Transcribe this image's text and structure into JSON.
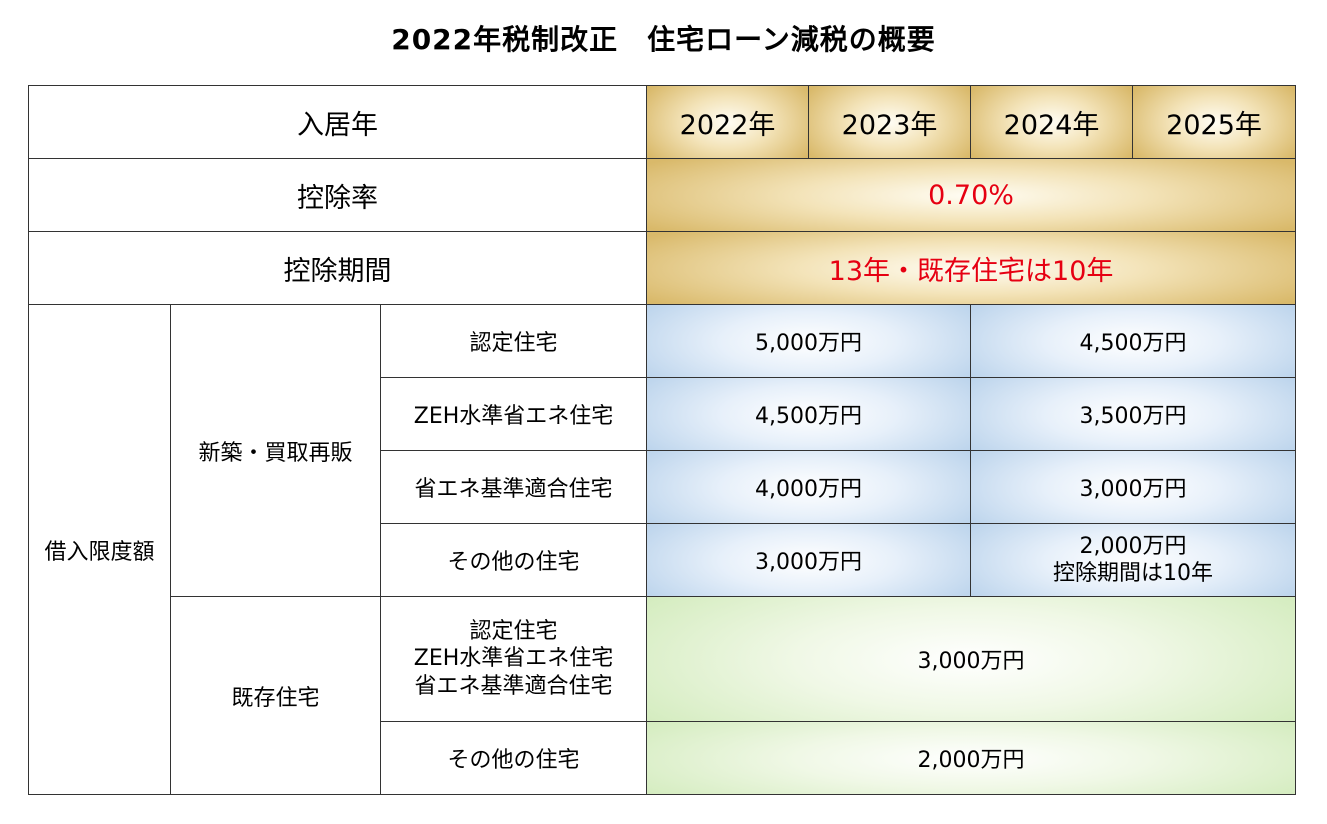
{
  "title": "2022年税制改正　住宅ローン減税の概要",
  "header": {
    "label": "入居年",
    "years": [
      "2022年",
      "2023年",
      "2024年",
      "2025年"
    ]
  },
  "deduction_rate": {
    "label": "控除率",
    "value": "0.70%"
  },
  "deduction_period": {
    "label": "控除期間",
    "value": "13年・既存住宅は10年"
  },
  "borrowing_limit": {
    "label": "借入限度額",
    "new": {
      "label": "新築・買取再販",
      "rows": [
        {
          "type": "認定住宅",
          "early": "5,000万円",
          "late": "4,500万円"
        },
        {
          "type": "ZEH水準省エネ住宅",
          "early": "4,500万円",
          "late": "3,500万円"
        },
        {
          "type": "省エネ基準適合住宅",
          "early": "4,000万円",
          "late": "3,000万円"
        },
        {
          "type": "その他の住宅",
          "early": "3,000万円",
          "late": "2,000万円",
          "late_note": "控除期間は10年"
        }
      ]
    },
    "existing": {
      "label": "既存住宅",
      "rows": [
        {
          "type_lines": [
            "認定住宅",
            "ZEH水準省エネ住宅",
            "省エネ基準適合住宅"
          ],
          "value": "3,000万円"
        },
        {
          "type": "その他の住宅",
          "value": "2,000万円"
        }
      ]
    }
  },
  "colors": {
    "red_text": "#e60012",
    "gold": "#d9b96a",
    "blue": "#bcd4ec",
    "green": "#d4ecbf",
    "border": "#333333"
  }
}
